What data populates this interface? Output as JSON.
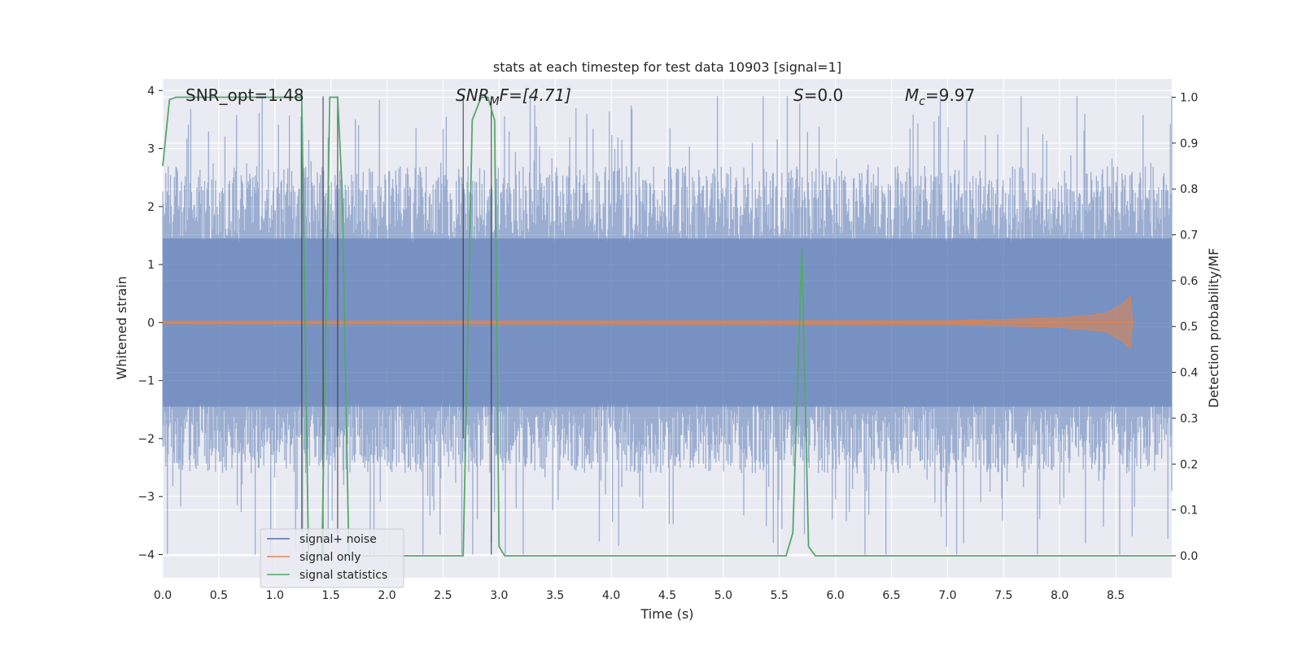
{
  "chart_data": {
    "type": "line",
    "title": "stats at each timestep for test data 10903 [signal=1]",
    "xlabel": "Time (s)",
    "ylabel_left": "Whitened strain",
    "ylabel_right": "Detection probability/MF",
    "xlim": [
      0.0,
      9.0
    ],
    "ylim_left": [
      -4.4,
      4.2
    ],
    "ylim_right": [
      -0.048,
      1.04
    ],
    "xticks": [
      0.0,
      0.5,
      1.0,
      1.5,
      2.0,
      2.5,
      3.0,
      3.5,
      4.0,
      4.5,
      5.0,
      5.5,
      6.0,
      6.5,
      7.0,
      7.5,
      8.0,
      8.5
    ],
    "xtick_labels": [
      "0.0",
      "0.5",
      "1.0",
      "1.5",
      "2.0",
      "2.5",
      "3.0",
      "3.5",
      "4.0",
      "4.5",
      "5.0",
      "5.5",
      "6.0",
      "6.5",
      "7.0",
      "7.5",
      "8.0",
      "8.5"
    ],
    "yticks_left": [
      -4,
      -3,
      -2,
      -1,
      0,
      1,
      2,
      3,
      4
    ],
    "ytick_labels_left": [
      "−4",
      "−3",
      "−2",
      "−1",
      "0",
      "1",
      "2",
      "3",
      "4"
    ],
    "yticks_right": [
      0.0,
      0.1,
      0.2,
      0.3,
      0.4,
      0.5,
      0.6,
      0.7,
      0.8,
      0.9,
      1.0
    ],
    "ytick_labels_right": [
      "0.0",
      "0.1",
      "0.2",
      "0.3",
      "0.4",
      "0.5",
      "0.6",
      "0.7",
      "0.8",
      "0.9",
      "1.0"
    ],
    "grid": true,
    "legend_position": "lower-left",
    "annotations": {
      "snr_opt": "SNR_opt=1.48",
      "snr_mf_main": "SNR",
      "snr_mf_sub": "M",
      "snr_mf_rest": "F=[4.71]",
      "s_main": "S",
      "s_rest": "=0.0",
      "mc_main": "M",
      "mc_sub": "c",
      "mc_rest": "=9.97"
    },
    "series": [
      {
        "name": "signal+ noise",
        "color": "#4c72b0",
        "axis": "left",
        "style": "noise band, typical envelope about ±2, extremes up to about ±4"
      },
      {
        "name": "signal only",
        "color": "#dd8452",
        "axis": "left",
        "x": [
          0.0,
          7.0,
          8.0,
          8.4,
          8.55,
          8.63,
          8.65
        ],
        "amplitude": [
          0.02,
          0.03,
          0.08,
          0.15,
          0.3,
          0.45,
          0.0
        ]
      },
      {
        "name": "signal statistics",
        "color": "#55a868",
        "axis": "right",
        "x": [
          0.0,
          0.06,
          0.12,
          1.0,
          1.24,
          1.3,
          1.42,
          1.49,
          1.51,
          1.56,
          1.6,
          1.66,
          1.72,
          2.2,
          2.68,
          2.76,
          2.84,
          2.9,
          2.96,
          3.0,
          3.05,
          3.1,
          5.56,
          5.62,
          5.7,
          5.76,
          5.82,
          6.3,
          6.4,
          9.0
        ],
        "y": [
          0.85,
          0.995,
          1.0,
          1.0,
          1.0,
          0.0,
          0.0,
          1.0,
          1.0,
          1.0,
          0.8,
          0.0,
          0.0,
          0.0,
          0.0,
          0.95,
          1.0,
          1.0,
          0.95,
          0.02,
          0.0,
          0.0,
          0.0,
          0.05,
          0.67,
          0.02,
          0.0,
          0.0,
          0.0,
          0.0
        ]
      }
    ],
    "vertical_markers": [
      {
        "x": 1.24,
        "y_from": -3.6,
        "y_to": 4.0
      },
      {
        "x": 1.43,
        "y_from": -4.0,
        "y_to": 3.9
      },
      {
        "x": 1.56,
        "y_from": -3.8,
        "y_to": 3.9
      },
      {
        "x": 2.68,
        "y_from": -2.0,
        "y_to": 3.9
      },
      {
        "x": 2.93,
        "y_from": -4.0,
        "y_to": 3.9
      }
    ]
  }
}
